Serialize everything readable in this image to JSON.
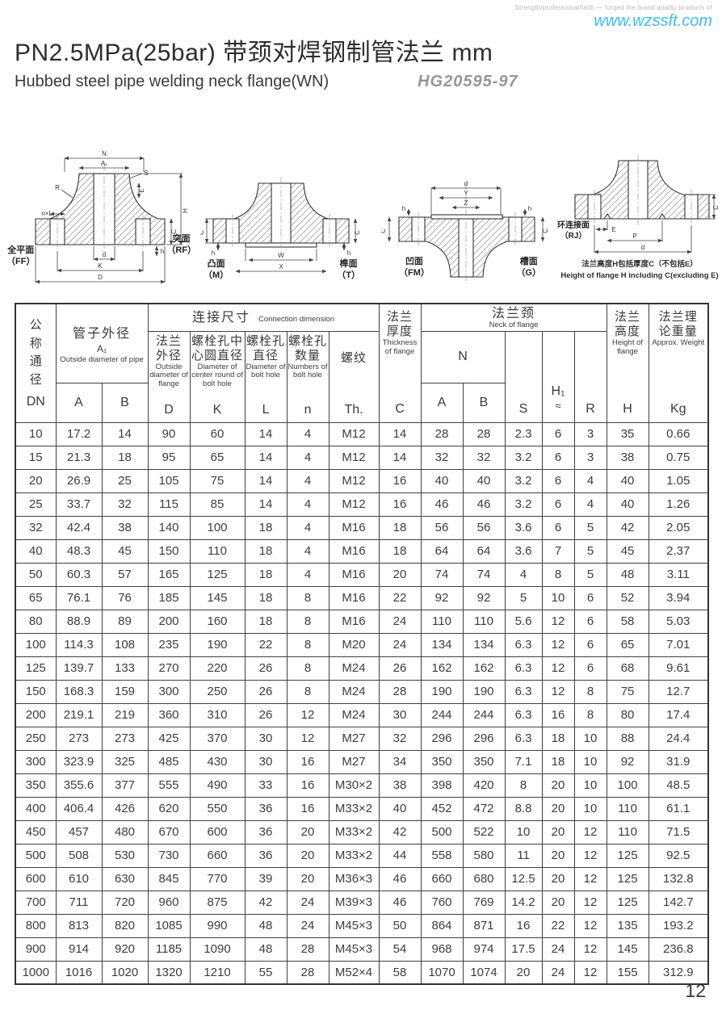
{
  "header": {
    "tagline": "Strength/professional/faith — forged the brand quality products of",
    "website": "www.wzssft.com",
    "title": "PN2.5MPa(25bar) 带颈对焊钢制管法兰 mm",
    "subtitle": "Hubbed steel pipe welding neck flange(WN)",
    "standard": "HG20595-97"
  },
  "drawings": {
    "ff_rf": {
      "left_cn": "全平面",
      "left_code": "（FF）",
      "right_cn": "突面",
      "right_code": "（RF）",
      "dims": {
        "n": "N",
        "a1": "A₁",
        "s": "S",
        "r": "R",
        "nxl": "n×L",
        "e": "E",
        "h_total": "H",
        "c": "C",
        "h_small": "h",
        "d": "d",
        "k": "K",
        "big_d": "D"
      }
    },
    "m_t": {
      "left_cn": "凸面",
      "left_code": "（M）",
      "right_cn": "榫面",
      "right_code": "（T）",
      "dims": {
        "w": "W",
        "x": "X",
        "c": "C",
        "h": "h"
      }
    },
    "fm_g": {
      "left_cn": "凹面",
      "left_code": "（FM）",
      "right_cn": "槽面",
      "right_code": "（G）",
      "dims": {
        "d": "d",
        "y": "Y",
        "z": "Z",
        "c": "C",
        "h": "h"
      }
    },
    "rj": {
      "cn": "环连接面",
      "code": "（RJ）",
      "dims": {
        "e": "E",
        "p": "P",
        "d": "d",
        "c": "C"
      },
      "note_cn": "法兰高度H包括厚度C（不包括E）",
      "note_en": "Height of flange H including C(excluding E)"
    }
  },
  "table": {
    "dn": {
      "cn": "公\n称\n通\n径",
      "code": "DN"
    },
    "pipe_od": {
      "cn": "管子外径",
      "sub": "A₁",
      "en": "Outside diameter\nof pipe",
      "col_a": "A",
      "col_b": "B"
    },
    "connection": {
      "cn": "连接尺寸",
      "en": "Connection dimension"
    },
    "flange_od": {
      "cn": "法兰\n外径",
      "en": "Outside\ndiameter\nof flange",
      "code": "D"
    },
    "bolt_circle": {
      "cn": "螺栓孔中\n心圆直径",
      "en": "Diameter of\ncenter round\nof bolt hole",
      "code": "K"
    },
    "bolt_dia": {
      "cn": "螺栓孔\n直径",
      "en": "Diameter\nof bolt\nhole",
      "code": "L"
    },
    "bolt_num": {
      "cn": "螺栓孔\n数量",
      "en": "Numbers\nof bolt\nhole",
      "code": "n"
    },
    "thread": {
      "cn": "螺纹",
      "code": "Th."
    },
    "thickness": {
      "cn": "法兰\n厚度",
      "en": "Thickness\nof flange",
      "code": "C"
    },
    "neck": {
      "cn": "法兰颈",
      "en": "Neck of flange",
      "n": "N",
      "col_a": "A",
      "col_b": "B",
      "s": "S",
      "h1": "H₁",
      "approx": "≈",
      "r": "R"
    },
    "height": {
      "cn": "法兰\n高度",
      "en": "Height\nof\nflange",
      "code": "H"
    },
    "weight": {
      "cn": "法兰理\n论重量",
      "en": "Approx.\nWeight",
      "code": "Kg"
    },
    "rows": [
      [
        "10",
        "17.2",
        "14",
        "90",
        "60",
        "14",
        "4",
        "M12",
        "14",
        "28",
        "28",
        "2.3",
        "6",
        "3",
        "35",
        "0.66"
      ],
      [
        "15",
        "21.3",
        "18",
        "95",
        "65",
        "14",
        "4",
        "M12",
        "14",
        "32",
        "32",
        "3.2",
        "6",
        "3",
        "38",
        "0.75"
      ],
      [
        "20",
        "26.9",
        "25",
        "105",
        "75",
        "14",
        "4",
        "M12",
        "16",
        "40",
        "40",
        "3.2",
        "6",
        "4",
        "40",
        "1.05"
      ],
      [
        "25",
        "33.7",
        "32",
        "115",
        "85",
        "14",
        "4",
        "M12",
        "16",
        "46",
        "46",
        "3.2",
        "6",
        "4",
        "40",
        "1.26"
      ],
      [
        "32",
        "42.4",
        "38",
        "140",
        "100",
        "18",
        "4",
        "M16",
        "18",
        "56",
        "56",
        "3.6",
        "6",
        "5",
        "42",
        "2.05"
      ],
      [
        "40",
        "48.3",
        "45",
        "150",
        "110",
        "18",
        "4",
        "M16",
        "18",
        "64",
        "64",
        "3.6",
        "7",
        "5",
        "45",
        "2.37"
      ],
      [
        "50",
        "60.3",
        "57",
        "165",
        "125",
        "18",
        "4",
        "M16",
        "20",
        "74",
        "74",
        "4",
        "8",
        "5",
        "48",
        "3.11"
      ],
      [
        "65",
        "76.1",
        "76",
        "185",
        "145",
        "18",
        "8",
        "M16",
        "22",
        "92",
        "92",
        "5",
        "10",
        "6",
        "52",
        "3.94"
      ],
      [
        "80",
        "88.9",
        "89",
        "200",
        "160",
        "18",
        "8",
        "M16",
        "24",
        "110",
        "110",
        "5.6",
        "12",
        "6",
        "58",
        "5.03"
      ],
      [
        "100",
        "114.3",
        "108",
        "235",
        "190",
        "22",
        "8",
        "M20",
        "24",
        "134",
        "134",
        "6.3",
        "12",
        "6",
        "65",
        "7.01"
      ],
      [
        "125",
        "139.7",
        "133",
        "270",
        "220",
        "26",
        "8",
        "M24",
        "26",
        "162",
        "162",
        "6.3",
        "12",
        "6",
        "68",
        "9.61"
      ],
      [
        "150",
        "168.3",
        "159",
        "300",
        "250",
        "26",
        "8",
        "M24",
        "28",
        "190",
        "190",
        "6.3",
        "12",
        "8",
        "75",
        "12.7"
      ],
      [
        "200",
        "219.1",
        "219",
        "360",
        "310",
        "26",
        "12",
        "M24",
        "30",
        "244",
        "244",
        "6.3",
        "16",
        "8",
        "80",
        "17.4"
      ],
      [
        "250",
        "273",
        "273",
        "425",
        "370",
        "30",
        "12",
        "M27",
        "32",
        "296",
        "296",
        "6.3",
        "18",
        "10",
        "88",
        "24.4"
      ],
      [
        "300",
        "323.9",
        "325",
        "485",
        "430",
        "30",
        "16",
        "M27",
        "34",
        "350",
        "350",
        "7.1",
        "18",
        "10",
        "92",
        "31.9"
      ],
      [
        "350",
        "355.6",
        "377",
        "555",
        "490",
        "33",
        "16",
        "M30×2",
        "38",
        "398",
        "420",
        "8",
        "20",
        "10",
        "100",
        "48.5"
      ],
      [
        "400",
        "406.4",
        "426",
        "620",
        "550",
        "36",
        "16",
        "M33×2",
        "40",
        "452",
        "472",
        "8.8",
        "20",
        "10",
        "110",
        "61.1"
      ],
      [
        "450",
        "457",
        "480",
        "670",
        "600",
        "36",
        "20",
        "M33×2",
        "42",
        "500",
        "522",
        "10",
        "20",
        "12",
        "110",
        "71.5"
      ],
      [
        "500",
        "508",
        "530",
        "730",
        "660",
        "36",
        "20",
        "M33×2",
        "44",
        "558",
        "580",
        "11",
        "20",
        "12",
        "125",
        "92.5"
      ],
      [
        "600",
        "610",
        "630",
        "845",
        "770",
        "39",
        "20",
        "M36×3",
        "46",
        "660",
        "680",
        "12.5",
        "20",
        "12",
        "125",
        "132.8"
      ],
      [
        "700",
        "711",
        "720",
        "960",
        "875",
        "42",
        "24",
        "M39×3",
        "46",
        "760",
        "769",
        "14.2",
        "20",
        "12",
        "125",
        "142.7"
      ],
      [
        "800",
        "813",
        "820",
        "1085",
        "990",
        "48",
        "24",
        "M45×3",
        "50",
        "864",
        "871",
        "16",
        "22",
        "12",
        "135",
        "193.2"
      ],
      [
        "900",
        "914",
        "920",
        "1185",
        "1090",
        "48",
        "28",
        "M45×3",
        "54",
        "968",
        "974",
        "17.5",
        "24",
        "12",
        "145",
        "236.8"
      ],
      [
        "1000",
        "1016",
        "1020",
        "1320",
        "1210",
        "55",
        "28",
        "M52×4",
        "58",
        "1070",
        "1074",
        "20",
        "24",
        "12",
        "155",
        "312.9"
      ]
    ]
  },
  "page_number": "12"
}
